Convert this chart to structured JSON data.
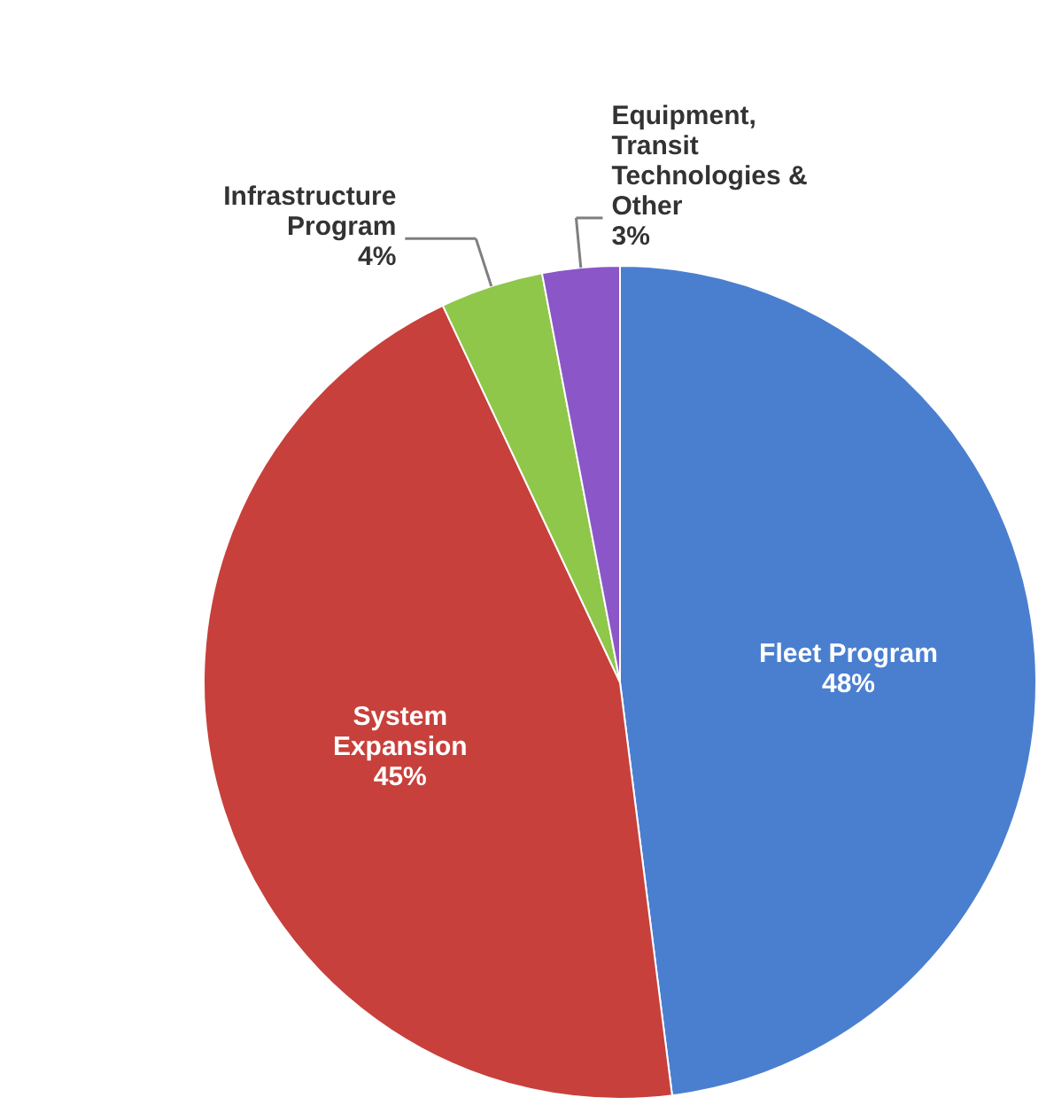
{
  "chart_data": {
    "type": "pie",
    "categories": [
      "Fleet Program",
      "System Expansion",
      "Infrastructure Program",
      "Equipment, Transit Technologies & Other"
    ],
    "values": [
      48,
      45,
      4,
      3
    ],
    "colors": [
      "#4a7fd0",
      "#c8403b",
      "#8fc74a",
      "#8a56c8"
    ],
    "value_labels": [
      "48%",
      "45%",
      "4%",
      "3%"
    ]
  }
}
